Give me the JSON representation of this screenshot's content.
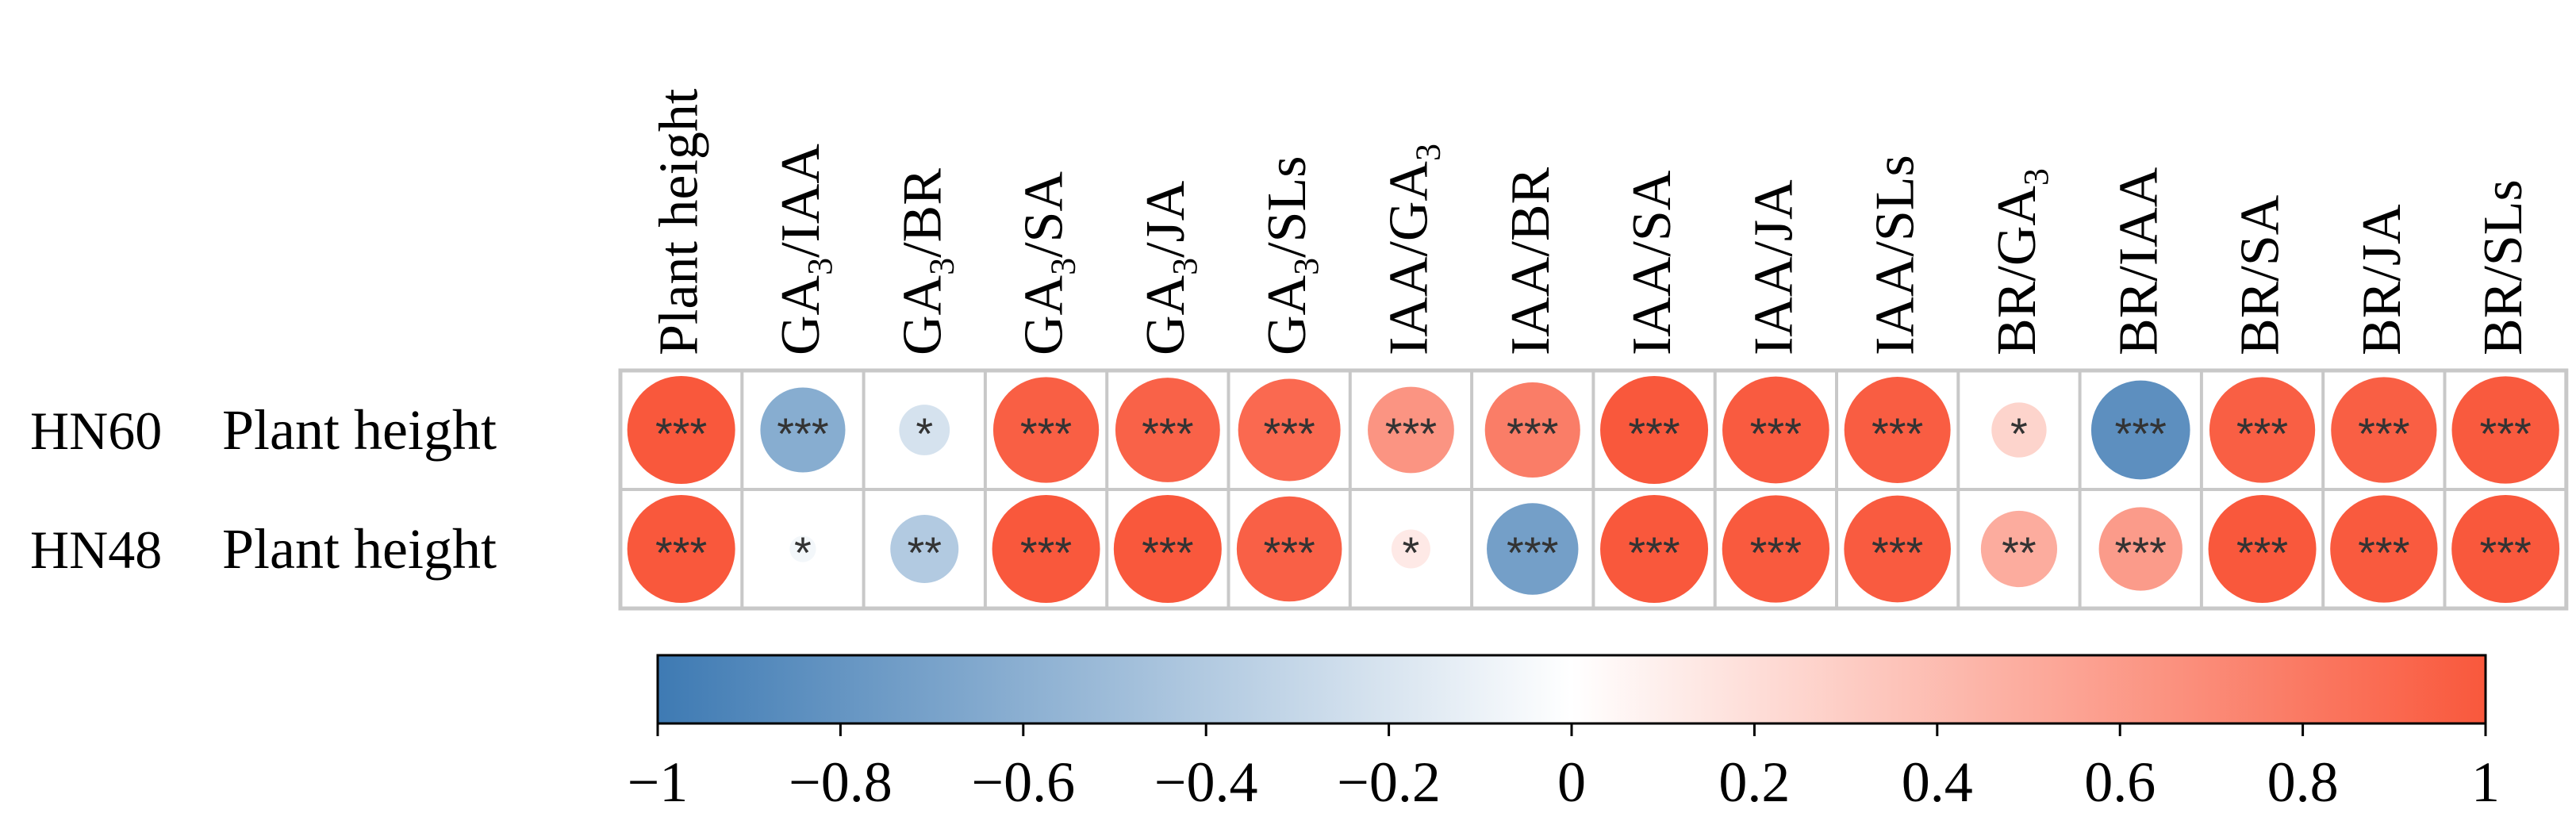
{
  "chart_data": {
    "type": "heatmap",
    "title": "",
    "columns": [
      {
        "label": "Plant height"
      },
      {
        "label": "GA",
        "sub": "3",
        "rest": "/IAA"
      },
      {
        "label": "GA",
        "sub": "3",
        "rest": "/BR"
      },
      {
        "label": "GA",
        "sub": "3",
        "rest": "/SA"
      },
      {
        "label": "GA",
        "sub": "3",
        "rest": "/JA"
      },
      {
        "label": "GA",
        "sub": "3",
        "rest": "/SLs"
      },
      {
        "label": "IAA/GA",
        "sub": "3",
        "rest": ""
      },
      {
        "label": "IAA/BR"
      },
      {
        "label": "IAA/SA"
      },
      {
        "label": "IAA/JA"
      },
      {
        "label": "IAA/SLs"
      },
      {
        "label": "BR/GA",
        "sub": "3",
        "rest": ""
      },
      {
        "label": "BR/IAA"
      },
      {
        "label": "BR/SA"
      },
      {
        "label": "BR/JA"
      },
      {
        "label": "BR/SLs"
      }
    ],
    "rows": [
      {
        "group": "HN60",
        "label": "Plant height",
        "values": [
          1.0,
          -0.62,
          -0.22,
          0.96,
          0.94,
          0.9,
          0.64,
          0.78,
          1.0,
          0.98,
          0.97,
          0.26,
          -0.84,
          0.96,
          0.96,
          0.99
        ],
        "signif": [
          "***",
          "***",
          "*",
          "***",
          "***",
          "***",
          "***",
          "***",
          "***",
          "***",
          "***",
          "*",
          "***",
          "***",
          "***",
          "***"
        ]
      },
      {
        "group": "HN48",
        "label": "Plant height",
        "values": [
          1.0,
          -0.06,
          -0.4,
          1.0,
          1.0,
          0.95,
          0.13,
          -0.72,
          1.0,
          0.99,
          0.98,
          0.5,
          0.6,
          1.0,
          0.99,
          1.0
        ],
        "signif": [
          "***",
          "*",
          "**",
          "***",
          "***",
          "***",
          "*",
          "***",
          "***",
          "***",
          "***",
          "**",
          "***",
          "***",
          "***",
          "***"
        ]
      }
    ],
    "colorbar": {
      "min": -1,
      "max": 1,
      "ticks": [
        -1,
        -0.8,
        -0.6,
        -0.4,
        -0.2,
        0,
        0.2,
        0.4,
        0.6,
        0.8,
        1
      ],
      "tick_labels": [
        "−1",
        "−0.8",
        "−0.6",
        "−0.4",
        "−0.2",
        "0",
        "0.2",
        "0.4",
        "0.6",
        "0.8",
        "1"
      ],
      "low_color": "#3E7AB3",
      "mid_color": "#FFFFFF",
      "high_color": "#F9583C"
    },
    "grid_color": "#C8C8C8",
    "star_color": "#333333"
  }
}
